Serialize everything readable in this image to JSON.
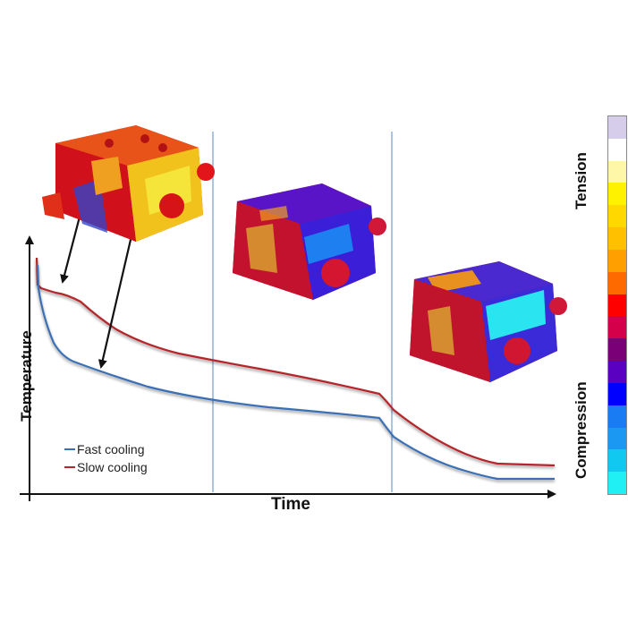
{
  "axes": {
    "xlabel": "Time",
    "ylabel": "Temperature"
  },
  "legend": {
    "items": [
      {
        "label": "Fast cooling",
        "color": "#3a6fb5"
      },
      {
        "label": "Slow cooling",
        "color": "#b5262b"
      }
    ]
  },
  "colorbar": {
    "top_label": "Tension",
    "bottom_label": "Compression",
    "colors": [
      "#d6cdea",
      "#ffffff",
      "#fff7a8",
      "#fff200",
      "#ffd800",
      "#ffc000",
      "#ffa000",
      "#ff6a00",
      "#ff0000",
      "#d4004a",
      "#7a0078",
      "#5a00c0",
      "#0000ff",
      "#1a7cf2",
      "#1a98f2",
      "#10c8f0",
      "#20f0f4"
    ]
  },
  "phases": [
    {
      "snapshot": "engine-block-early",
      "dominant": "tension"
    },
    {
      "snapshot": "engine-block-mid",
      "dominant": "mixed"
    },
    {
      "snapshot": "engine-block-late",
      "dominant": "compression"
    }
  ],
  "colors": {
    "fast": "#3a6fb5",
    "slow": "#b5262b",
    "divider": "#7ea3cf",
    "axis": "#111111"
  }
}
